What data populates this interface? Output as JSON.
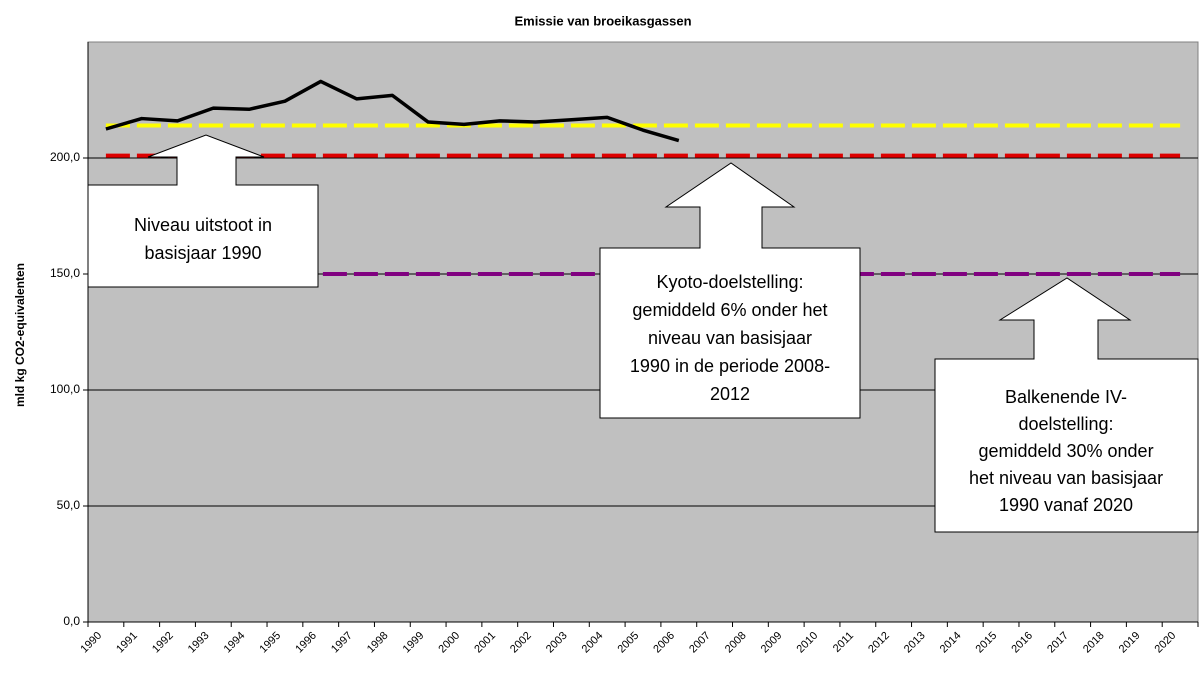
{
  "chart_data": {
    "type": "line",
    "title": "Emissie van broeikasgassen",
    "y_label": "mld kg CO2-equivalenten",
    "categories": [
      "1990",
      "1991",
      "1992",
      "1993",
      "1994",
      "1995",
      "1996",
      "1997",
      "1998",
      "1999",
      "2000",
      "2001",
      "2002",
      "2003",
      "2004",
      "2005",
      "2006",
      "2007",
      "2008",
      "2009",
      "2010",
      "2011",
      "2012",
      "2013",
      "2014",
      "2015",
      "2016",
      "2017",
      "2018",
      "2019",
      "2020"
    ],
    "series": [
      {
        "color": "#ffff00",
        "dashed": true,
        "values": [
          214,
          214,
          214,
          214,
          214,
          214,
          214,
          214,
          214,
          214,
          214,
          214,
          214,
          214,
          214,
          214,
          214,
          214,
          214,
          214,
          214,
          214,
          214,
          214,
          214,
          214,
          214,
          214,
          214,
          214,
          214
        ]
      },
      {
        "color": "#dd0000",
        "dashed": true,
        "values": [
          201,
          201,
          201,
          201,
          201,
          201,
          201,
          201,
          201,
          201,
          201,
          201,
          201,
          201,
          201,
          201,
          201,
          201,
          201,
          201,
          201,
          201,
          201,
          201,
          201,
          201,
          201,
          201,
          201,
          201,
          201
        ]
      },
      {
        "color": "#800080",
        "dashed": true,
        "values": [
          150,
          150,
          150,
          150,
          150,
          150,
          150,
          150,
          150,
          150,
          150,
          150,
          150,
          150,
          150,
          150,
          150,
          150,
          150,
          150,
          150,
          150,
          150,
          150,
          150,
          150,
          150,
          150,
          150,
          150,
          150
        ]
      },
      {
        "color": "#000000",
        "dashed": false,
        "values": [
          212.5,
          217,
          216,
          221.5,
          221,
          224.5,
          233,
          225.5,
          227,
          215.5,
          214.5,
          216,
          215.5,
          216.5,
          217.5,
          212,
          207.5,
          null,
          null,
          null,
          null,
          null,
          null,
          null,
          null,
          null,
          null,
          null,
          null,
          null,
          null
        ]
      }
    ],
    "ylim": [
      0,
      250
    ],
    "yticks": [
      {
        "value": 0,
        "label": "0,0"
      },
      {
        "value": 50,
        "label": "50,0"
      },
      {
        "value": 100,
        "label": "100,0"
      },
      {
        "value": 150,
        "label": "150,0"
      },
      {
        "value": 200,
        "label": "200,0"
      }
    ],
    "grid": true,
    "annotations": [
      [
        "Niveau uitstoot in",
        "basisjaar 1990"
      ],
      [
        "Kyoto-doelstelling:",
        "gemiddeld 6% onder het",
        "niveau van basisjaar",
        "1990 in de periode 2008-",
        "2012"
      ],
      [
        "Balkenende IV-",
        "doelstelling:",
        "gemiddeld 30% onder",
        "het niveau van basisjaar",
        "1990 vanaf 2020"
      ]
    ]
  }
}
